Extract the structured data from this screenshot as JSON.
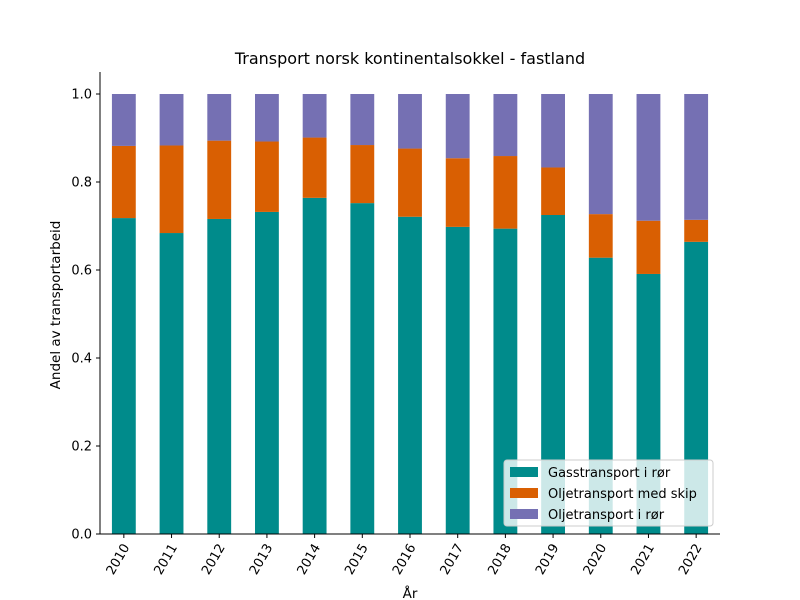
{
  "chart_data": {
    "type": "bar",
    "stacked": true,
    "title": "Transport norsk kontinentalsokkel - fastland",
    "xlabel": "År",
    "ylabel": "Andel av transportarbeid",
    "ylim": [
      0,
      1.05
    ],
    "yticks": [
      "0.0",
      "0.2",
      "0.4",
      "0.6",
      "0.8",
      "1.0"
    ],
    "categories": [
      "2010",
      "2011",
      "2012",
      "2013",
      "2014",
      "2015",
      "2016",
      "2017",
      "2018",
      "2019",
      "2020",
      "2021",
      "2022"
    ],
    "series": [
      {
        "name": "Gasstransport i rør",
        "color": "#008b8b",
        "values": [
          0.718,
          0.684,
          0.716,
          0.732,
          0.764,
          0.752,
          0.721,
          0.698,
          0.694,
          0.725,
          0.628,
          0.591,
          0.664
        ]
      },
      {
        "name": "Oljetransport med skip",
        "color": "#d95f02",
        "values": [
          0.164,
          0.199,
          0.178,
          0.16,
          0.137,
          0.132,
          0.155,
          0.156,
          0.165,
          0.108,
          0.099,
          0.121,
          0.05
        ]
      },
      {
        "name": "Oljetransport i rør",
        "color": "#7570b3",
        "values": [
          0.118,
          0.117,
          0.106,
          0.108,
          0.099,
          0.116,
          0.124,
          0.146,
          0.141,
          0.167,
          0.273,
          0.288,
          0.286
        ]
      }
    ],
    "grid": false,
    "legend_position": "lower-right"
  }
}
